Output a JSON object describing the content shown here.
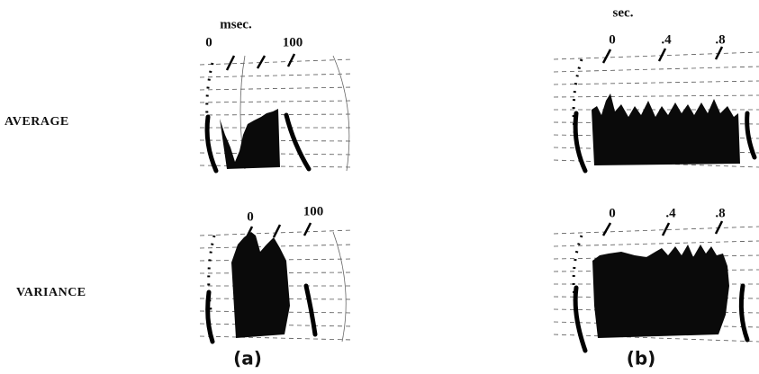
{
  "row_labels": [
    "AVERAGE",
    "VARIANCE"
  ],
  "panels": [
    {
      "unit": "msec.",
      "label": "(a)",
      "rows": [
        {
          "ticks": [
            "0",
            "100"
          ]
        },
        {
          "ticks": [
            "0",
            "100"
          ]
        }
      ]
    },
    {
      "unit": "sec.",
      "label": "(b)",
      "rows": [
        {
          "ticks": [
            "0",
            ".4",
            ".8"
          ]
        },
        {
          "ticks": [
            "0",
            ".4",
            ".8"
          ]
        }
      ]
    }
  ]
}
